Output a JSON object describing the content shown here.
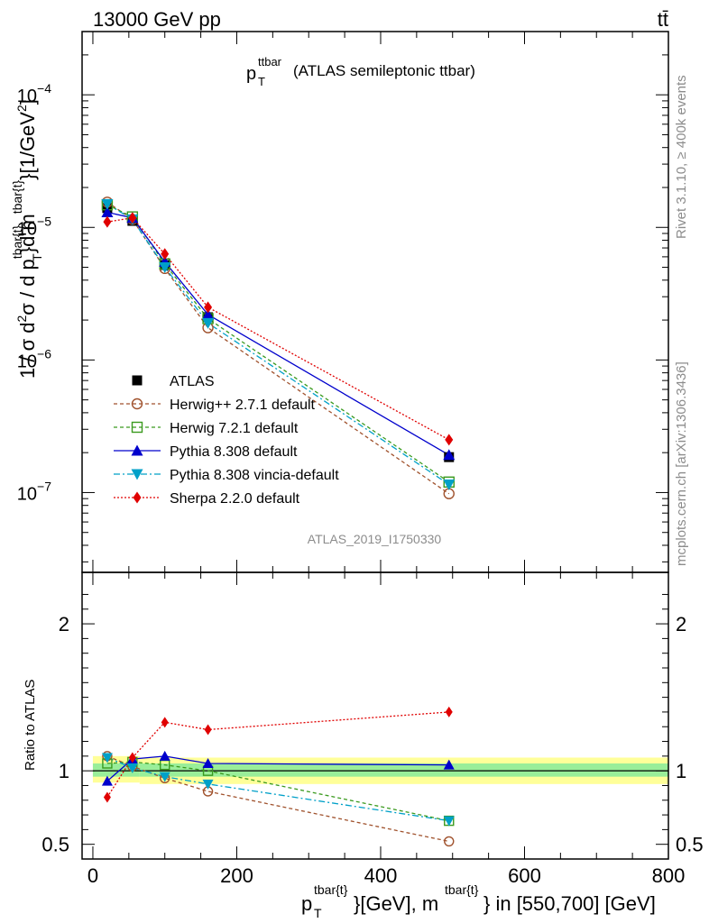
{
  "header": {
    "left": "13000 GeV pp",
    "right": "tt̄",
    "side_rivet": "Rivet 3.1.10, ≥ 400k events",
    "side_mcplots": "mcplots.cern.ch [arXiv:1306.3436]"
  },
  "chart_data": [
    {
      "type": "line",
      "title_main": "p",
      "title_sup": "ttbar",
      "title_sub": "T",
      "title_rest": "(ATLAS semileptonic ttbar)",
      "watermark": "ATLAS_2019_I1750330",
      "ylabel": "1 / σ d²σ / d p_T^{tbar{t}} d m^{tbar{t}} [1/GeV²]",
      "yscale": "log",
      "ylim": [
        2.5e-08,
        0.0003
      ],
      "xlim": [
        -15,
        800
      ],
      "y_tick_labels": [
        {
          "v": 1e-07,
          "base": "10",
          "exp": "−7"
        },
        {
          "v": 1e-06,
          "base": "10",
          "exp": "−6"
        },
        {
          "v": 1e-05,
          "base": "10",
          "exp": "−5"
        },
        {
          "v": 0.0001,
          "base": "10",
          "exp": "−4"
        }
      ],
      "legend_position": "lower-left",
      "x": [
        20,
        55,
        100,
        160,
        495
      ],
      "series": [
        {
          "name": "ATLAS",
          "color": "#000000",
          "dash": "",
          "marker": "square-filled",
          "values": [
            1.4e-05,
            1.12e-05,
            5.2e-06,
            2.1e-06,
            1.85e-07
          ]
        },
        {
          "name": "Herwig++ 2.7.1 default",
          "color": "#a0522d",
          "dash": "4,3",
          "marker": "circle-open",
          "values": [
            1.55e-05,
            1.15e-05,
            4.9e-06,
            1.75e-06,
            9.8e-08
          ]
        },
        {
          "name": "Herwig 7.2.1 default",
          "color": "#3a9a1e",
          "dash": "4,3",
          "marker": "square-open",
          "values": [
            1.48e-05,
            1.2e-05,
            5.3e-06,
            2.05e-06,
            1.2e-07
          ]
        },
        {
          "name": "Pythia 8.308 default",
          "color": "#0000cc",
          "dash": "",
          "marker": "triangle-up",
          "values": [
            1.3e-05,
            1.18e-05,
            5.5e-06,
            2.2e-06,
            1.92e-07
          ]
        },
        {
          "name": "Pythia 8.308 vincia-default",
          "color": "#00a0c8",
          "dash": "7,3,2,3",
          "marker": "triangle-down",
          "values": [
            1.5e-05,
            1.15e-05,
            5e-06,
            1.9e-06,
            1.15e-07
          ]
        },
        {
          "name": "Sherpa 2.2.0 default",
          "color": "#e00000",
          "dash": "2,2",
          "marker": "diamond",
          "values": [
            1.1e-05,
            1.18e-05,
            6.3e-06,
            2.5e-06,
            2.5e-07
          ]
        }
      ]
    },
    {
      "type": "line",
      "ylabel": "Ratio to ATLAS",
      "xlabel": "p_T^{tbar{t}} [GeV], m^{tbar{t}} in [550,700] [GeV]",
      "xlabel_p": "p",
      "xlabel_T": "T",
      "xlabel_sup1": "tbar{t}",
      "xlabel_mid": "}[GeV], m",
      "xlabel_sup2": "tbar{t}",
      "xlabel_end": "} in [550,700] [GeV]",
      "ylim": [
        0.4,
        2.35
      ],
      "xlim": [
        -15,
        800
      ],
      "y_ticks": [
        0.5,
        1,
        2
      ],
      "y_tick_labels": [
        "0.5",
        "1",
        "2"
      ],
      "x_ticks": [
        0,
        200,
        400,
        600,
        800
      ],
      "x_tick_labels": [
        "0",
        "200",
        "400",
        "600",
        "800"
      ],
      "bands": [
        {
          "color": "#ffff99",
          "segments": [
            [
              0,
              65,
              0.92,
              1.1
            ],
            [
              65,
              800,
              0.91,
              1.09
            ]
          ]
        },
        {
          "color": "#99ee99",
          "segments": [
            [
              0,
              65,
              0.96,
              1.05
            ],
            [
              65,
              800,
              0.96,
              1.05
            ]
          ]
        }
      ],
      "x": [
        20,
        55,
        100,
        160,
        495
      ],
      "series": [
        {
          "name": "Herwig++ 2.7.1 default",
          "values": [
            1.1,
            1.03,
            0.95,
            0.86,
            0.52
          ]
        },
        {
          "name": "Herwig 7.2.1 default",
          "values": [
            1.05,
            1.06,
            1.04,
            1.0,
            0.66
          ]
        },
        {
          "name": "Pythia 8.308 default",
          "values": [
            0.93,
            1.08,
            1.1,
            1.05,
            1.04
          ]
        },
        {
          "name": "Pythia 8.308 vincia-default",
          "values": [
            1.09,
            1.02,
            0.96,
            0.91,
            0.66
          ]
        },
        {
          "name": "Sherpa 2.2.0 default",
          "values": [
            0.82,
            1.09,
            1.33,
            1.28,
            1.4
          ]
        }
      ]
    }
  ]
}
